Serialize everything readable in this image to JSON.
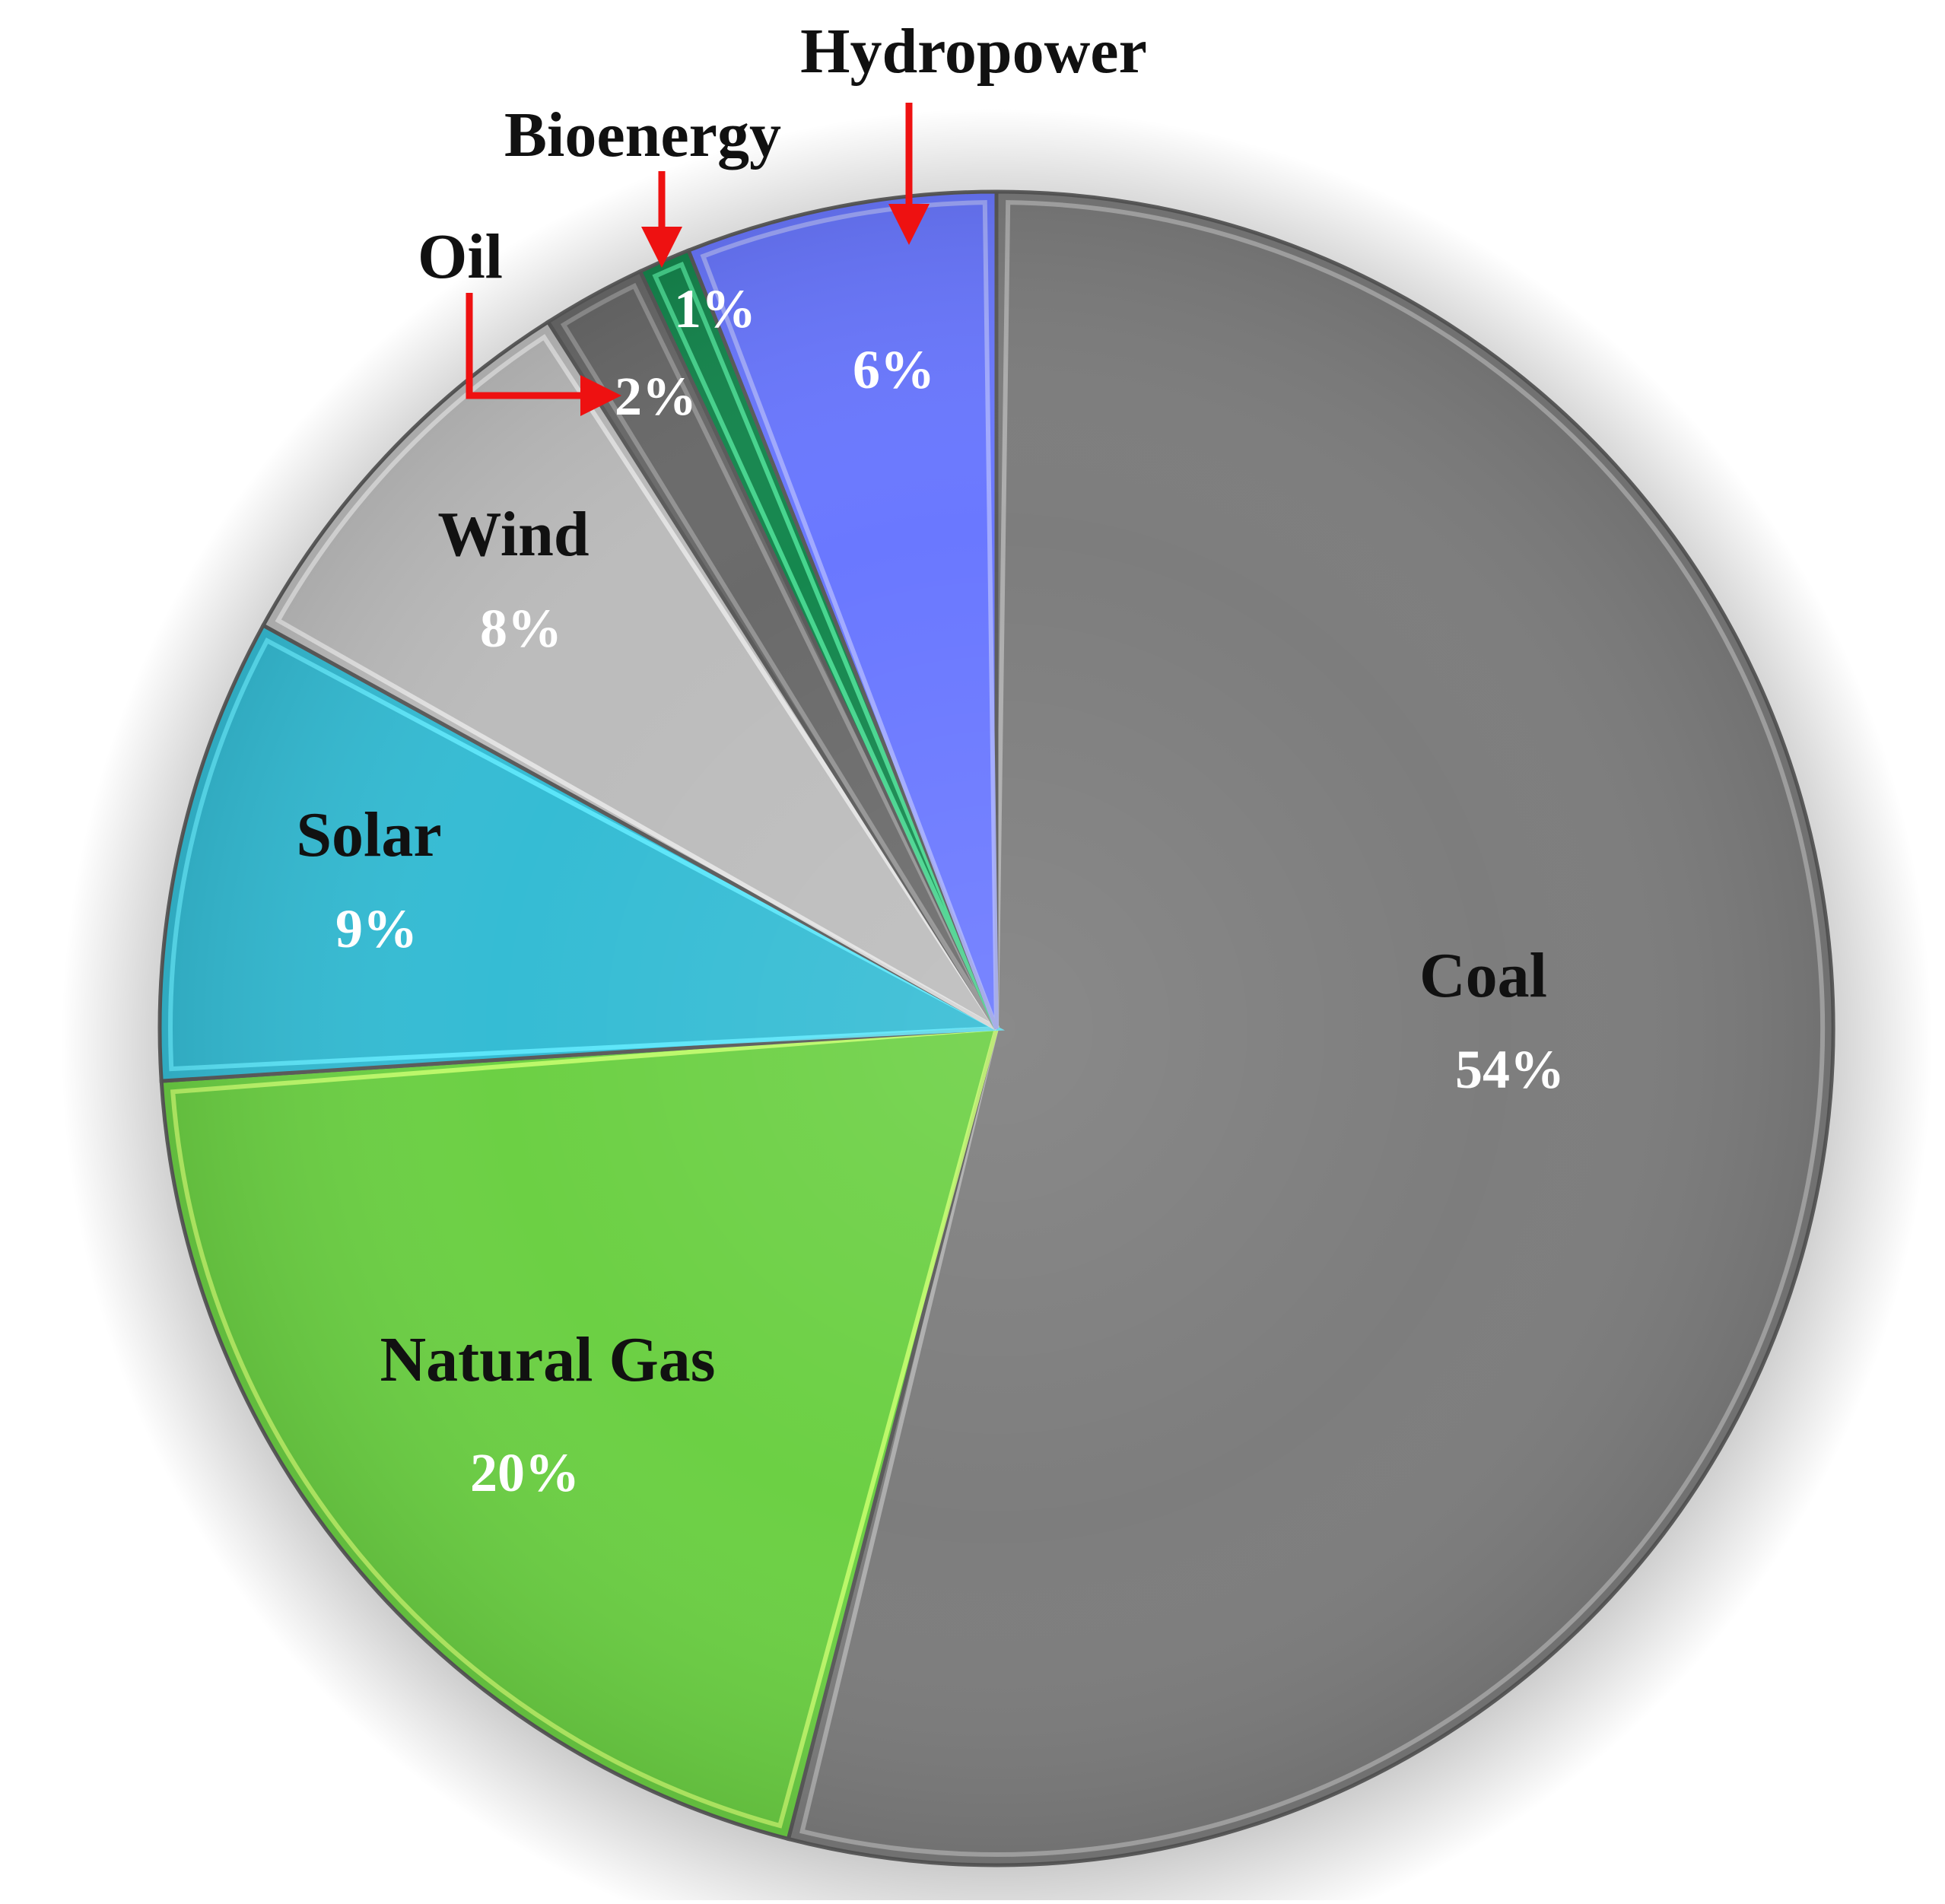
{
  "chart_data": {
    "type": "pie",
    "title": "",
    "start_angle_deg": 0,
    "direction": "clockwise",
    "slices": [
      {
        "name": "Coal",
        "value": 54,
        "label": "54%",
        "color": "#7d7d7d",
        "edge": "#b5b5b5"
      },
      {
        "name": "Natural Gas",
        "value": 20,
        "label": "20%",
        "color": "#6cd044",
        "edge": "#c9ff6e"
      },
      {
        "name": "Solar",
        "value": 9,
        "label": "9%",
        "color": "#35bcd4",
        "edge": "#62ecff"
      },
      {
        "name": "Wind",
        "value": 8,
        "label": "8%",
        "color": "#bcbcbc",
        "edge": "#eaeaea"
      },
      {
        "name": "Oil",
        "value": 2,
        "label": "2%",
        "color": "#6a6a6a",
        "edge": "#9a9a9a"
      },
      {
        "name": "Bioenergy",
        "value": 1,
        "label": "1%",
        "color": "#15874e",
        "edge": "#4fe39a"
      },
      {
        "name": "Hydropower",
        "value": 6,
        "label": "6%",
        "color": "#6a78ff",
        "edge": "#aab3ff"
      }
    ],
    "callout_arrow_color": "#ee1111"
  }
}
